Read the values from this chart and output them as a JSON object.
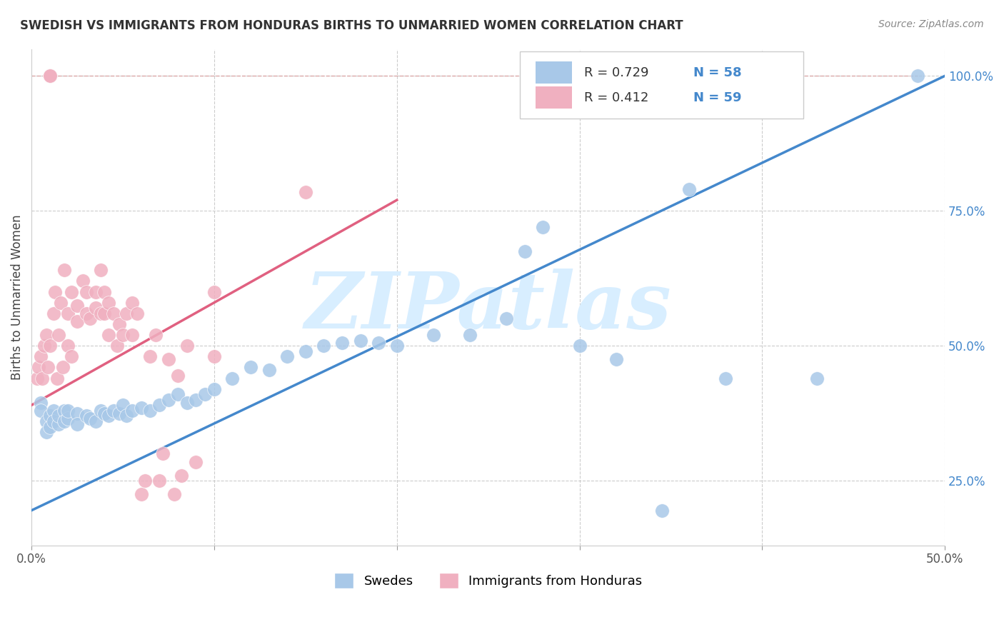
{
  "title": "SWEDISH VS IMMIGRANTS FROM HONDURAS BIRTHS TO UNMARRIED WOMEN CORRELATION CHART",
  "source": "Source: ZipAtlas.com",
  "ylabel": "Births to Unmarried Women",
  "legend_labels": [
    "Swedes",
    "Immigrants from Honduras"
  ],
  "blue_R": "R = 0.729",
  "blue_N": "N = 58",
  "pink_R": "R = 0.412",
  "pink_N": "N = 59",
  "blue_color": "#A8C8E8",
  "pink_color": "#F0B0C0",
  "blue_line_color": "#4488CC",
  "pink_line_color": "#E06080",
  "grid_color": "#CCCCCC",
  "watermark": "ZIPatlas",
  "watermark_color": "#D8EEFF",
  "xlim": [
    0.0,
    0.5
  ],
  "ylim": [
    0.13,
    1.05
  ],
  "xtick_vals": [
    0.0,
    0.1,
    0.2,
    0.3,
    0.4,
    0.5
  ],
  "xtick_labels": [
    "0.0%",
    "",
    "",
    "",
    "",
    "50.0%"
  ],
  "ytick_vals": [
    0.25,
    0.5,
    0.75,
    1.0
  ],
  "ytick_labels": [
    "25.0%",
    "50.0%",
    "75.0%",
    "100.0%"
  ],
  "blue_scatter": [
    [
      0.005,
      0.395
    ],
    [
      0.005,
      0.38
    ],
    [
      0.008,
      0.36
    ],
    [
      0.008,
      0.34
    ],
    [
      0.01,
      0.37
    ],
    [
      0.01,
      0.35
    ],
    [
      0.012,
      0.38
    ],
    [
      0.012,
      0.36
    ],
    [
      0.015,
      0.355
    ],
    [
      0.015,
      0.37
    ],
    [
      0.018,
      0.38
    ],
    [
      0.018,
      0.36
    ],
    [
      0.02,
      0.365
    ],
    [
      0.02,
      0.38
    ],
    [
      0.025,
      0.375
    ],
    [
      0.025,
      0.355
    ],
    [
      0.03,
      0.37
    ],
    [
      0.032,
      0.365
    ],
    [
      0.035,
      0.36
    ],
    [
      0.038,
      0.38
    ],
    [
      0.04,
      0.375
    ],
    [
      0.042,
      0.37
    ],
    [
      0.045,
      0.38
    ],
    [
      0.048,
      0.375
    ],
    [
      0.05,
      0.39
    ],
    [
      0.052,
      0.37
    ],
    [
      0.055,
      0.38
    ],
    [
      0.06,
      0.385
    ],
    [
      0.065,
      0.38
    ],
    [
      0.07,
      0.39
    ],
    [
      0.075,
      0.4
    ],
    [
      0.08,
      0.41
    ],
    [
      0.085,
      0.395
    ],
    [
      0.09,
      0.4
    ],
    [
      0.095,
      0.41
    ],
    [
      0.1,
      0.42
    ],
    [
      0.11,
      0.44
    ],
    [
      0.12,
      0.46
    ],
    [
      0.13,
      0.455
    ],
    [
      0.14,
      0.48
    ],
    [
      0.15,
      0.49
    ],
    [
      0.16,
      0.5
    ],
    [
      0.17,
      0.505
    ],
    [
      0.18,
      0.51
    ],
    [
      0.19,
      0.505
    ],
    [
      0.2,
      0.5
    ],
    [
      0.22,
      0.52
    ],
    [
      0.24,
      0.52
    ],
    [
      0.26,
      0.55
    ],
    [
      0.27,
      0.675
    ],
    [
      0.28,
      0.72
    ],
    [
      0.3,
      0.5
    ],
    [
      0.32,
      0.475
    ],
    [
      0.345,
      0.195
    ],
    [
      0.36,
      0.79
    ],
    [
      0.38,
      0.44
    ],
    [
      0.43,
      0.44
    ],
    [
      0.485,
      1.0
    ]
  ],
  "pink_scatter": [
    [
      0.003,
      0.44
    ],
    [
      0.004,
      0.46
    ],
    [
      0.005,
      0.48
    ],
    [
      0.006,
      0.44
    ],
    [
      0.007,
      0.5
    ],
    [
      0.008,
      0.52
    ],
    [
      0.009,
      0.46
    ],
    [
      0.01,
      0.5
    ],
    [
      0.01,
      1.0
    ],
    [
      0.01,
      1.0
    ],
    [
      0.01,
      1.0
    ],
    [
      0.012,
      0.56
    ],
    [
      0.013,
      0.6
    ],
    [
      0.014,
      0.44
    ],
    [
      0.015,
      0.52
    ],
    [
      0.016,
      0.58
    ],
    [
      0.017,
      0.46
    ],
    [
      0.018,
      0.64
    ],
    [
      0.02,
      0.5
    ],
    [
      0.02,
      0.56
    ],
    [
      0.022,
      0.6
    ],
    [
      0.022,
      0.48
    ],
    [
      0.025,
      0.545
    ],
    [
      0.025,
      0.575
    ],
    [
      0.028,
      0.62
    ],
    [
      0.03,
      0.56
    ],
    [
      0.03,
      0.6
    ],
    [
      0.032,
      0.55
    ],
    [
      0.035,
      0.57
    ],
    [
      0.035,
      0.6
    ],
    [
      0.038,
      0.56
    ],
    [
      0.038,
      0.64
    ],
    [
      0.04,
      0.56
    ],
    [
      0.04,
      0.6
    ],
    [
      0.042,
      0.52
    ],
    [
      0.042,
      0.58
    ],
    [
      0.045,
      0.56
    ],
    [
      0.047,
      0.5
    ],
    [
      0.048,
      0.54
    ],
    [
      0.05,
      0.52
    ],
    [
      0.052,
      0.56
    ],
    [
      0.055,
      0.52
    ],
    [
      0.055,
      0.58
    ],
    [
      0.058,
      0.56
    ],
    [
      0.06,
      0.225
    ],
    [
      0.062,
      0.25
    ],
    [
      0.065,
      0.48
    ],
    [
      0.068,
      0.52
    ],
    [
      0.07,
      0.25
    ],
    [
      0.072,
      0.3
    ],
    [
      0.075,
      0.475
    ],
    [
      0.078,
      0.225
    ],
    [
      0.08,
      0.445
    ],
    [
      0.082,
      0.26
    ],
    [
      0.085,
      0.5
    ],
    [
      0.09,
      0.285
    ],
    [
      0.1,
      0.48
    ],
    [
      0.1,
      0.6
    ],
    [
      0.15,
      0.785
    ]
  ],
  "blue_line_pts": [
    [
      0.0,
      0.195
    ],
    [
      0.5,
      1.0
    ]
  ],
  "pink_line_pts": [
    [
      0.0,
      0.39
    ],
    [
      0.2,
      0.77
    ]
  ],
  "diag_line_pts": [
    [
      0.0,
      1.0
    ],
    [
      0.485,
      1.0
    ]
  ]
}
